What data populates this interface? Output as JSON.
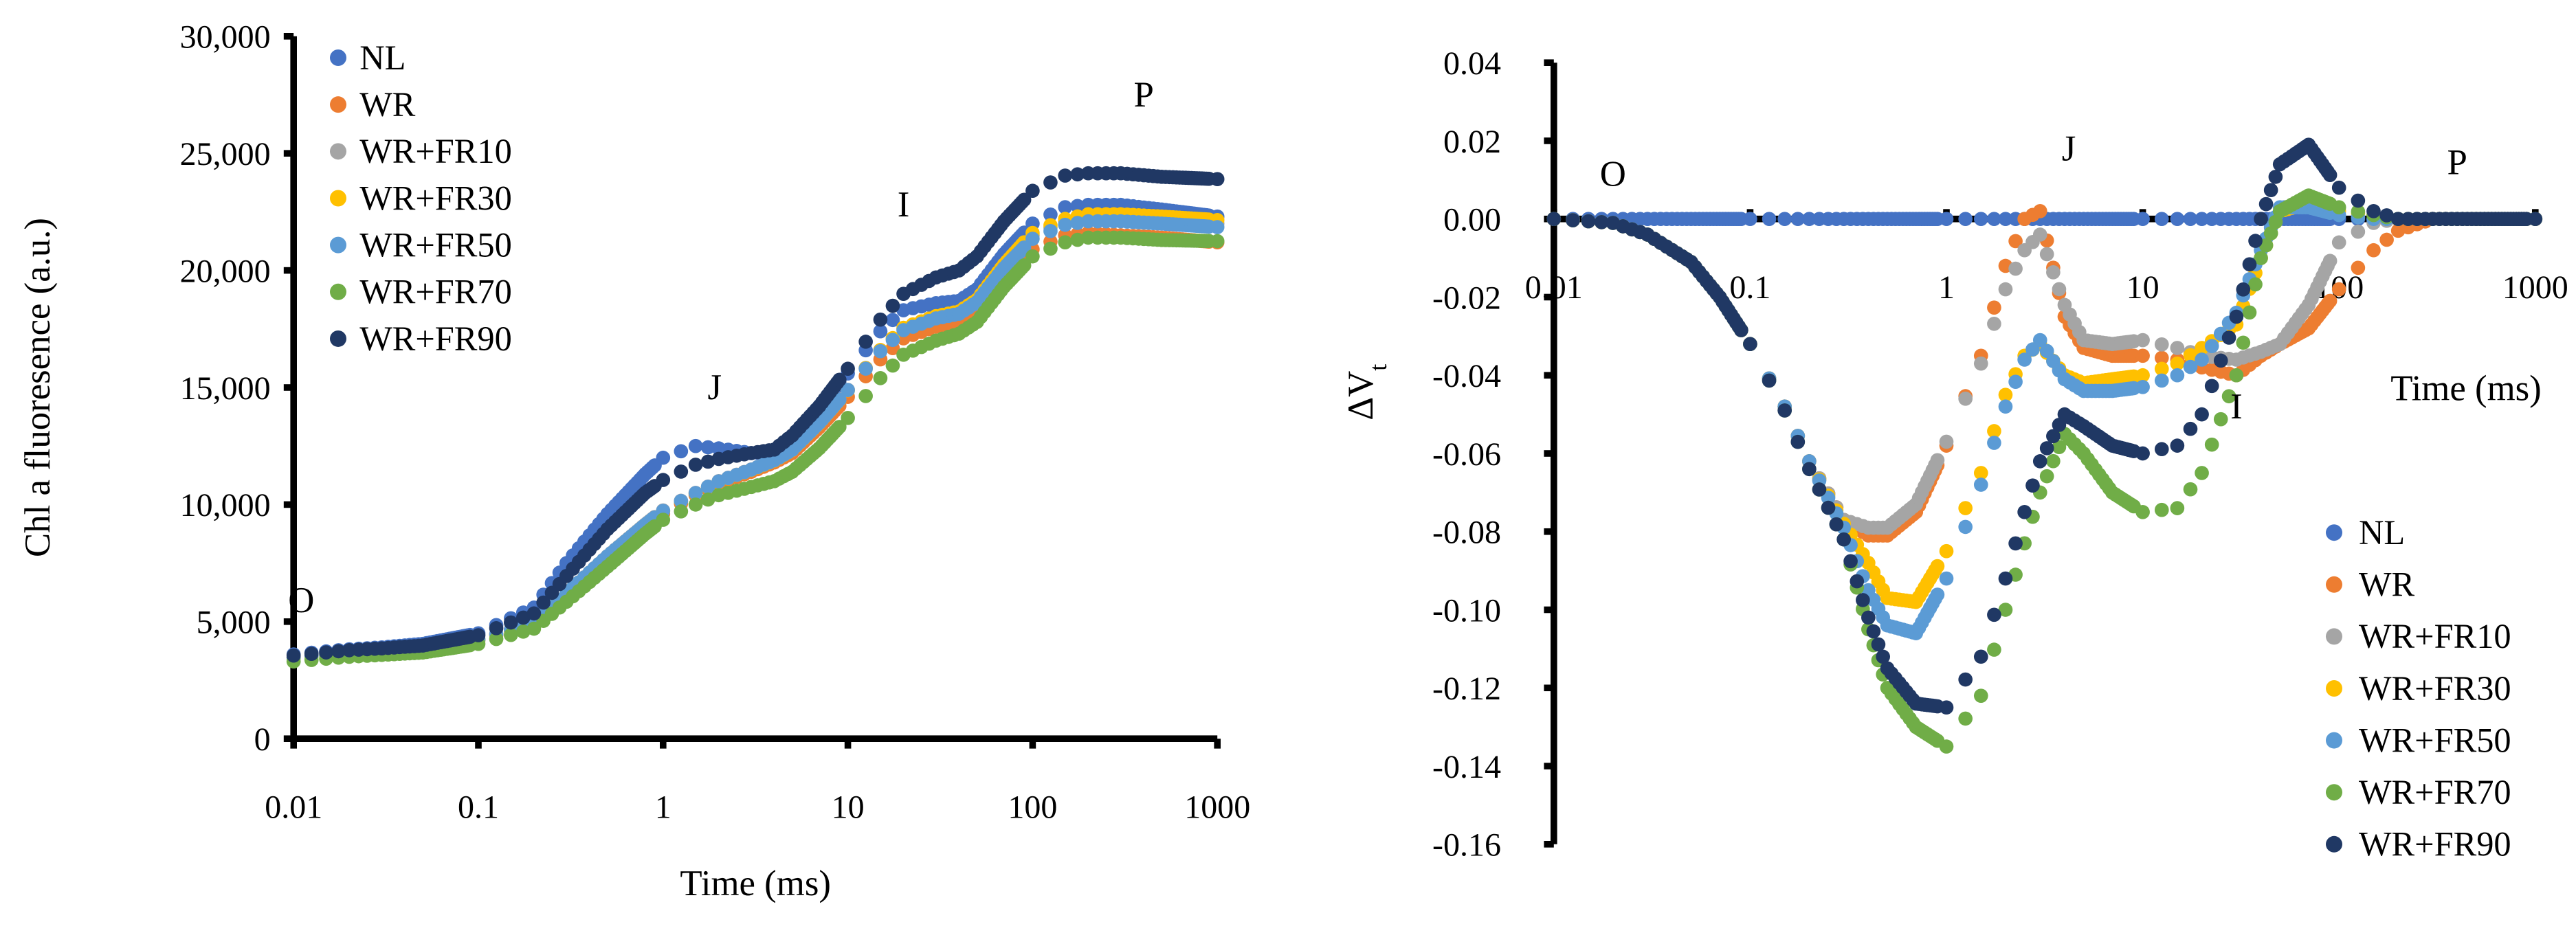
{
  "chart_data": [
    {
      "type": "scatter",
      "id": "left",
      "x_scale": "log",
      "xlabel": "Time (ms)",
      "ylabel": "Chl a fluoresence (a.u.)",
      "xlim": [
        0.01,
        1000
      ],
      "ylim": [
        0,
        30000
      ],
      "x_ticks": [
        0.01,
        0.1,
        1,
        10,
        100,
        1000
      ],
      "x_tick_labels": [
        "0.01",
        "0.1",
        "1",
        "10",
        "100",
        "1000"
      ],
      "y_ticks": [
        0,
        5000,
        10000,
        15000,
        20000,
        25000,
        30000
      ],
      "y_tick_labels": [
        "0",
        "5,000",
        "10,000",
        "15,000",
        "20,000",
        "25,000",
        "30,000"
      ],
      "legend_position": "top-left",
      "annotations": [
        {
          "text": "O",
          "x": 0.011,
          "y": 5400
        },
        {
          "text": "J",
          "x": 1.9,
          "y": 14500
        },
        {
          "text": "I",
          "x": 20,
          "y": 22300
        },
        {
          "text": "P",
          "x": 400,
          "y": 27000
        }
      ],
      "curve_x": [
        0.01,
        0.02,
        0.03,
        0.05,
        0.1,
        0.2,
        0.3,
        0.5,
        0.8,
        1,
        1.5,
        2,
        3,
        4,
        5,
        7,
        10,
        15,
        20,
        30,
        40,
        50,
        70,
        100,
        150,
        200,
        300,
        500,
        1000
      ],
      "series": [
        {
          "name": "NL",
          "color": "#4472C4",
          "values": [
            3600,
            3820,
            3900,
            4050,
            4500,
            5600,
            7500,
            9600,
            11300,
            12000,
            12500,
            12400,
            12200,
            12250,
            12900,
            14200,
            15600,
            17400,
            18300,
            18600,
            18700,
            19200,
            20700,
            22000,
            22700,
            22800,
            22800,
            22600,
            22300
          ]
        },
        {
          "name": "WR",
          "color": "#ED7D31",
          "values": [
            3450,
            3650,
            3720,
            3820,
            4200,
            4900,
            6100,
            7700,
            9000,
            9600,
            10400,
            10900,
            11400,
            11800,
            12200,
            13300,
            14600,
            16200,
            17100,
            17600,
            17800,
            18300,
            19700,
            20900,
            21500,
            21600,
            21500,
            21400,
            21200
          ]
        },
        {
          "name": "WR+FR10",
          "color": "#A5A5A5",
          "values": [
            3480,
            3680,
            3760,
            3860,
            4250,
            4950,
            6200,
            7800,
            9150,
            9750,
            10500,
            11000,
            11500,
            11900,
            12350,
            13500,
            14900,
            16600,
            17500,
            18000,
            18200,
            18700,
            20200,
            21500,
            22100,
            22300,
            22300,
            22200,
            22000
          ]
        },
        {
          "name": "WR+FR30",
          "color": "#FFC000",
          "values": [
            3460,
            3660,
            3740,
            3840,
            4230,
            4930,
            6180,
            7780,
            9120,
            9720,
            10480,
            10980,
            11480,
            11880,
            12330,
            13480,
            14880,
            16600,
            17550,
            18050,
            18250,
            18750,
            20250,
            21600,
            22200,
            22400,
            22400,
            22300,
            22150
          ]
        },
        {
          "name": "WR+FR50",
          "color": "#5B9BD5",
          "values": [
            3470,
            3670,
            3750,
            3850,
            4240,
            4940,
            6190,
            7790,
            9130,
            9730,
            10490,
            10990,
            11490,
            11890,
            12340,
            13490,
            14890,
            16550,
            17450,
            17950,
            18150,
            18650,
            20100,
            21350,
            21950,
            22100,
            22100,
            22000,
            21850
          ]
        },
        {
          "name": "WR+FR70",
          "color": "#70AD47",
          "values": [
            3300,
            3500,
            3580,
            3680,
            4050,
            4700,
            5850,
            7350,
            8750,
            9350,
            10000,
            10400,
            10750,
            11000,
            11400,
            12400,
            13700,
            15400,
            16400,
            17000,
            17300,
            17800,
            19300,
            20600,
            21200,
            21400,
            21400,
            21300,
            21250
          ]
        },
        {
          "name": "WR+FR90",
          "color": "#203864",
          "values": [
            3550,
            3780,
            3860,
            3980,
            4420,
            5350,
            6950,
            8950,
            10500,
            11050,
            11700,
            11950,
            12200,
            12350,
            12950,
            14200,
            15800,
            17900,
            19000,
            19700,
            20000,
            20600,
            22100,
            23400,
            24050,
            24150,
            24150,
            24000,
            23900
          ]
        }
      ]
    },
    {
      "type": "scatter",
      "id": "right",
      "x_scale": "log",
      "xlabel": "Time (ms)",
      "ylabel": "ΔV",
      "ylabel_subscript": "t",
      "xlim": [
        0.01,
        1000
      ],
      "ylim": [
        -0.16,
        0.04
      ],
      "x_ticks": [
        0.01,
        0.1,
        1,
        10,
        100,
        1000
      ],
      "x_tick_labels": [
        "0.01",
        "0.1",
        "1",
        "10",
        "100",
        "1000"
      ],
      "y_ticks": [
        0.04,
        0.02,
        0,
        -0.02,
        -0.04,
        -0.06,
        -0.08,
        -0.1,
        -0.12,
        -0.14,
        -0.16
      ],
      "y_tick_labels": [
        "0.04",
        "0.02",
        "0.00",
        "-0.02",
        "-0.04",
        "-0.06",
        "-0.08",
        "-0.10",
        "-0.12",
        "-0.14",
        "-0.16"
      ],
      "legend_position": "bottom-right",
      "annotations": [
        {
          "text": "O",
          "x": 0.02,
          "y": 0.0085
        },
        {
          "text": "J",
          "x": 4.2,
          "y": 0.015
        },
        {
          "text": "I",
          "x": 30,
          "y": -0.051
        },
        {
          "text": "P",
          "x": 400,
          "y": 0.0115
        }
      ],
      "curve_x": [
        0.01,
        0.02,
        0.03,
        0.05,
        0.07,
        0.1,
        0.15,
        0.2,
        0.3,
        0.4,
        0.5,
        0.7,
        1,
        1.5,
        2,
        2.5,
        3,
        4,
        5,
        7,
        10,
        15,
        20,
        30,
        40,
        50,
        70,
        100,
        150,
        200,
        300,
        500,
        1000
      ],
      "series": [
        {
          "name": "NL",
          "color": "#4472C4",
          "values": [
            0,
            0,
            0,
            0,
            0,
            0,
            0,
            0,
            0,
            0,
            0,
            0,
            0,
            0,
            0,
            0,
            0,
            0,
            0,
            0,
            0,
            0,
            0,
            0,
            0,
            0,
            0,
            0,
            0,
            0,
            0,
            0,
            0
          ]
        },
        {
          "name": "WR",
          "color": "#ED7D31",
          "values": [
            0,
            -0.001,
            -0.004,
            -0.011,
            -0.02,
            -0.032,
            -0.048,
            -0.062,
            -0.077,
            -0.081,
            -0.081,
            -0.075,
            -0.058,
            -0.035,
            -0.012,
            0.0,
            0.002,
            -0.025,
            -0.033,
            -0.035,
            -0.035,
            -0.036,
            -0.038,
            -0.04,
            -0.035,
            -0.032,
            -0.028,
            -0.018,
            -0.008,
            -0.003,
            0,
            0,
            0
          ]
        },
        {
          "name": "WR+FR10",
          "color": "#A5A5A5",
          "values": [
            0,
            -0.001,
            -0.004,
            -0.011,
            -0.02,
            -0.032,
            -0.048,
            -0.062,
            -0.077,
            -0.079,
            -0.079,
            -0.073,
            -0.057,
            -0.037,
            -0.018,
            -0.008,
            -0.004,
            -0.022,
            -0.031,
            -0.032,
            -0.031,
            -0.033,
            -0.035,
            -0.036,
            -0.034,
            -0.032,
            -0.022,
            -0.006,
            -0.001,
            0,
            0,
            0,
            0
          ]
        },
        {
          "name": "WR+FR30",
          "color": "#FFC000",
          "values": [
            0,
            -0.001,
            -0.004,
            -0.011,
            -0.02,
            -0.032,
            -0.048,
            -0.062,
            -0.078,
            -0.088,
            -0.097,
            -0.098,
            -0.085,
            -0.065,
            -0.045,
            -0.035,
            -0.032,
            -0.04,
            -0.042,
            -0.041,
            -0.04,
            -0.037,
            -0.033,
            -0.027,
            -0.01,
            0.002,
            0.004,
            0.002,
            0.001,
            0,
            0,
            0,
            0
          ]
        },
        {
          "name": "WR+FR50",
          "color": "#5B9BD5",
          "values": [
            0,
            -0.001,
            -0.004,
            -0.011,
            -0.02,
            -0.032,
            -0.048,
            -0.062,
            -0.079,
            -0.095,
            -0.104,
            -0.106,
            -0.092,
            -0.068,
            -0.048,
            -0.036,
            -0.031,
            -0.041,
            -0.044,
            -0.044,
            -0.043,
            -0.04,
            -0.036,
            -0.024,
            -0.008,
            0.003,
            0.003,
            0.001,
            0,
            0,
            0,
            0,
            0
          ]
        },
        {
          "name": "WR+FR70",
          "color": "#70AD47",
          "values": [
            0,
            -0.001,
            -0.004,
            -0.011,
            -0.02,
            -0.032,
            -0.049,
            -0.064,
            -0.082,
            -0.105,
            -0.12,
            -0.13,
            -0.135,
            -0.122,
            -0.1,
            -0.083,
            -0.07,
            -0.055,
            -0.06,
            -0.07,
            -0.075,
            -0.074,
            -0.065,
            -0.04,
            -0.01,
            0.002,
            0.006,
            0.003,
            0.001,
            0,
            0,
            0,
            0
          ]
        },
        {
          "name": "WR+FR90",
          "color": "#203864",
          "values": [
            0,
            -0.001,
            -0.004,
            -0.011,
            -0.02,
            -0.032,
            -0.049,
            -0.064,
            -0.082,
            -0.102,
            -0.115,
            -0.124,
            -0.125,
            -0.112,
            -0.092,
            -0.075,
            -0.062,
            -0.05,
            -0.053,
            -0.058,
            -0.06,
            -0.058,
            -0.05,
            -0.025,
            0.0,
            0.014,
            0.019,
            0.008,
            0.002,
            0,
            0,
            0,
            0
          ]
        }
      ]
    }
  ]
}
